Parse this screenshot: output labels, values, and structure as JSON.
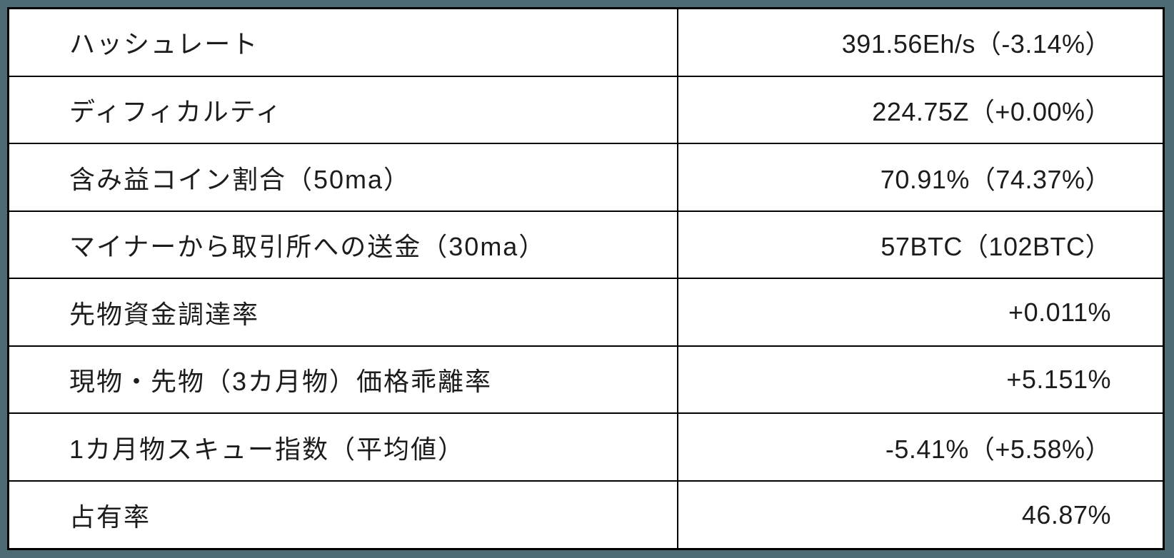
{
  "chart_data": {
    "type": "table",
    "rows": [
      {
        "label": "ハッシュレート",
        "value": "391.56Eh/s（-3.14%）"
      },
      {
        "label": "ディフィカルティ",
        "value": "224.75Z（+0.00%）"
      },
      {
        "label": "含み益コイン割合（50ma）",
        "value": "70.91%（74.37%）"
      },
      {
        "label": "マイナーから取引所への送金（30ma）",
        "value": "57BTC（102BTC）"
      },
      {
        "label": "先物資金調達率",
        "value": "+0.011%"
      },
      {
        "label": "現物・先物（3カ月物）価格乖離率",
        "value": "+5.151%"
      },
      {
        "label": "1カ月物スキュー指数（平均値）",
        "value": "-5.41%（+5.58%）"
      },
      {
        "label": "占有率",
        "value": "46.87%"
      }
    ],
    "layout": {
      "columns": 2,
      "label_alignment": "left",
      "value_alignment": "right",
      "grid": "on"
    }
  },
  "colors": {
    "frame_background": "#4d6b73",
    "grid_border": "#000000",
    "cell_background": "#ffffff",
    "text": "#1c1c1c"
  }
}
